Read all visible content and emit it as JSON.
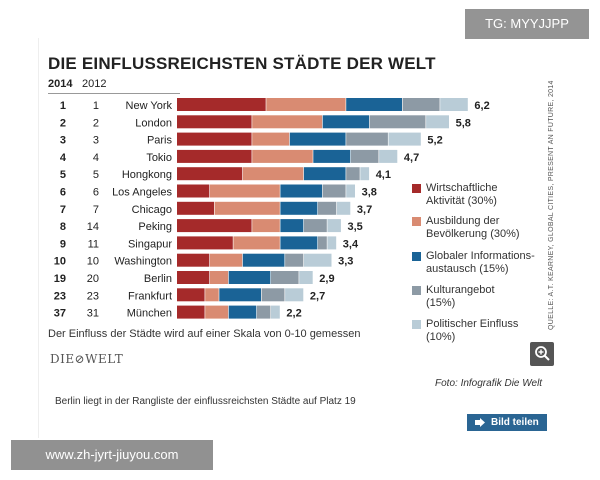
{
  "header": {
    "title": "DIE EINFLUSSREICHSTEN STÄDTE DER WELT",
    "year_current": "2014",
    "year_previous": "2012"
  },
  "chart_data": {
    "type": "bar",
    "stacked": true,
    "orientation": "horizontal",
    "categories": [
      "New York",
      "London",
      "Paris",
      "Tokio",
      "Hongkong",
      "Los Angeles",
      "Chicago",
      "Peking",
      "Singapur",
      "Washington",
      "Berlin",
      "Frankfurt",
      "München"
    ],
    "rank_2014": [
      "1",
      "2",
      "3",
      "4",
      "5",
      "6",
      "7",
      "8",
      "9",
      "10",
      "19",
      "23",
      "37"
    ],
    "rank_2012": [
      "1",
      "2",
      "3",
      "4",
      "5",
      "6",
      "7",
      "14",
      "11",
      "10",
      "20",
      "23",
      "31"
    ],
    "totals": [
      "6,2",
      "5,8",
      "5,2",
      "4,7",
      "4,1",
      "3,8",
      "3,7",
      "3,5",
      "3,4",
      "3,3",
      "2,9",
      "2,7",
      "2,2"
    ],
    "series": [
      {
        "name": "Wirtschaftliche Aktivität (30%)",
        "color": "#a52a2a",
        "values": [
          1.9,
          1.6,
          1.6,
          1.6,
          1.4,
          0.7,
          0.8,
          1.6,
          1.2,
          0.7,
          0.7,
          0.6,
          0.6
        ]
      },
      {
        "name": "Ausbildung der Bevölkerung (30%)",
        "color": "#d98b72",
        "values": [
          1.7,
          1.5,
          0.8,
          1.3,
          1.3,
          1.5,
          1.4,
          0.6,
          1.0,
          0.7,
          0.4,
          0.3,
          0.5
        ]
      },
      {
        "name": "Globaler Informations-austausch (15%)",
        "color": "#1a6396",
        "values": [
          1.2,
          1.0,
          1.2,
          0.8,
          0.9,
          0.9,
          0.8,
          0.5,
          0.8,
          0.9,
          0.9,
          0.9,
          0.6
        ]
      },
      {
        "name": "Kulturangebot (15%)",
        "color": "#8d9aa5",
        "values": [
          0.8,
          1.2,
          0.9,
          0.6,
          0.3,
          0.5,
          0.4,
          0.5,
          0.2,
          0.4,
          0.6,
          0.5,
          0.3
        ]
      },
      {
        "name": "Politischer Einfluss (10%)",
        "color": "#b9ccd7",
        "values": [
          0.6,
          0.5,
          0.7,
          0.4,
          0.2,
          0.2,
          0.3,
          0.3,
          0.2,
          0.6,
          0.3,
          0.4,
          0.2
        ]
      }
    ],
    "xlim": [
      0,
      6.5
    ],
    "grid": false,
    "legend": "right",
    "source": "QUELLE: A.T. KEARNEY, GLOBAL CITIES, PRESENT AN FUTURE, 2014"
  },
  "legend": [
    {
      "line1": "Wirtschaftliche",
      "line2": "Aktivität (30%)"
    },
    {
      "line1": "Ausbildung der",
      "line2": "Bevölkerung (30%)"
    },
    {
      "line1": "Globaler Informations-",
      "line2": "austausch (15%)"
    },
    {
      "line1": "Kulturangebot",
      "line2": "(15%)"
    },
    {
      "line1": "Politischer Einfluss",
      "line2": "(10%)"
    }
  ],
  "footer": {
    "scale_note": "Der Einfluss der Städte wird auf einer Skala von 0-10 gemessen",
    "logo": "DIE⊘WELT",
    "photo_credit": "Foto: Infografik Die Welt",
    "rank_note": "Berlin liegt in der Rangliste der einflussreichsten Städte auf Platz 19",
    "share_label": "Bild teilen",
    "zoom_icon": "zoom-in-icon",
    "share_icon": "share-icon"
  },
  "watermarks": {
    "top": "TG: MYYJJPP",
    "bottom": "www.zh-jyrt-jiuyou.com"
  }
}
